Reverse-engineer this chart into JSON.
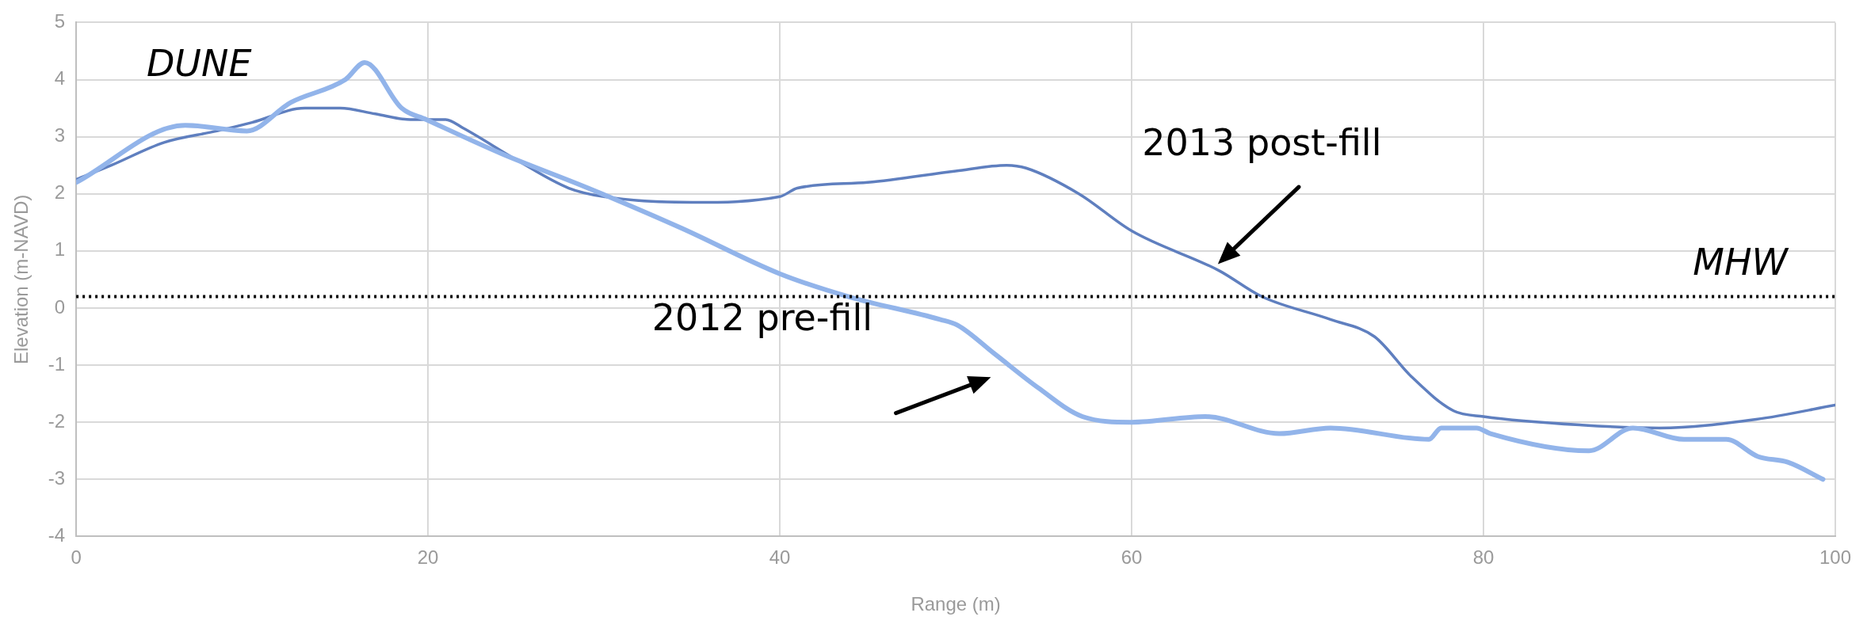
{
  "chart_data": {
    "type": "line",
    "xlabel": "Range (m)",
    "ylabel": "Elevation (m-NAVD)",
    "xlim": [
      0,
      100
    ],
    "xticks": [
      0,
      20,
      40,
      60,
      80,
      100
    ],
    "ylim": [
      -4,
      5
    ],
    "yticks": [
      -4,
      -3,
      -2,
      -1,
      0,
      1,
      2,
      3,
      4,
      5
    ],
    "grid": true,
    "legend": false,
    "marker": "none",
    "line_style": "solid",
    "series": [
      {
        "color": "#92b4ea",
        "x": [
          0,
          6.2,
          9.7,
          12.2,
          15.3,
          16.4,
          18.5,
          19.9,
          24.2,
          29.1,
          34.4,
          40,
          43.9,
          49.1,
          50.1,
          52.2,
          54.7,
          57.2,
          60,
          64.2,
          68.4,
          71.3,
          76.9,
          77.6,
          79.6,
          80.4,
          86,
          88.5,
          91.4,
          93.8,
          95.6,
          97.3,
          99.3
        ],
        "values": [
          2.2,
          3.2,
          3.1,
          3.6,
          4.0,
          4.3,
          3.5,
          3.3,
          2.7,
          2.1,
          1.4,
          0.6,
          0.2,
          -0.2,
          -0.3,
          -0.8,
          -1.4,
          -1.9,
          -2.0,
          -1.9,
          -2.2,
          -2.1,
          -2.3,
          -2.1,
          -2.1,
          -2.2,
          -2.5,
          -2.1,
          -2.3,
          -2.3,
          -2.6,
          -2.7,
          -3.0
        ]
      },
      {
        "color": "#5f7fbf",
        "x": [
          0,
          2,
          5,
          8,
          10,
          13,
          15,
          17,
          19,
          21,
          22,
          25,
          28,
          30,
          35,
          40,
          41,
          45,
          50,
          52.9,
          54,
          57,
          60,
          65,
          67.4,
          71.3,
          73.8,
          75.9,
          78.3,
          80,
          85.6,
          90,
          95.5,
          100
        ],
        "values": [
          2.25,
          2.5,
          2.9,
          3.1,
          3.25,
          3.5,
          3.5,
          3.4,
          3.3,
          3.3,
          3.15,
          2.6,
          2.1,
          1.95,
          1.85,
          1.95,
          2.1,
          2.2,
          2.4,
          2.5,
          2.45,
          2.0,
          1.35,
          0.65,
          0.2,
          -0.2,
          -0.5,
          -1.2,
          -1.8,
          -1.9,
          -2.05,
          -2.1,
          -1.95,
          -1.7
        ]
      }
    ],
    "ref_lines": [
      {
        "axis": "y",
        "value": 0.2,
        "label": "MHW",
        "color": "#000000",
        "line_style": "dotted"
      }
    ],
    "annotations": [
      "DUNE",
      "2013 post-fill",
      "2012 pre-fill"
    ]
  }
}
